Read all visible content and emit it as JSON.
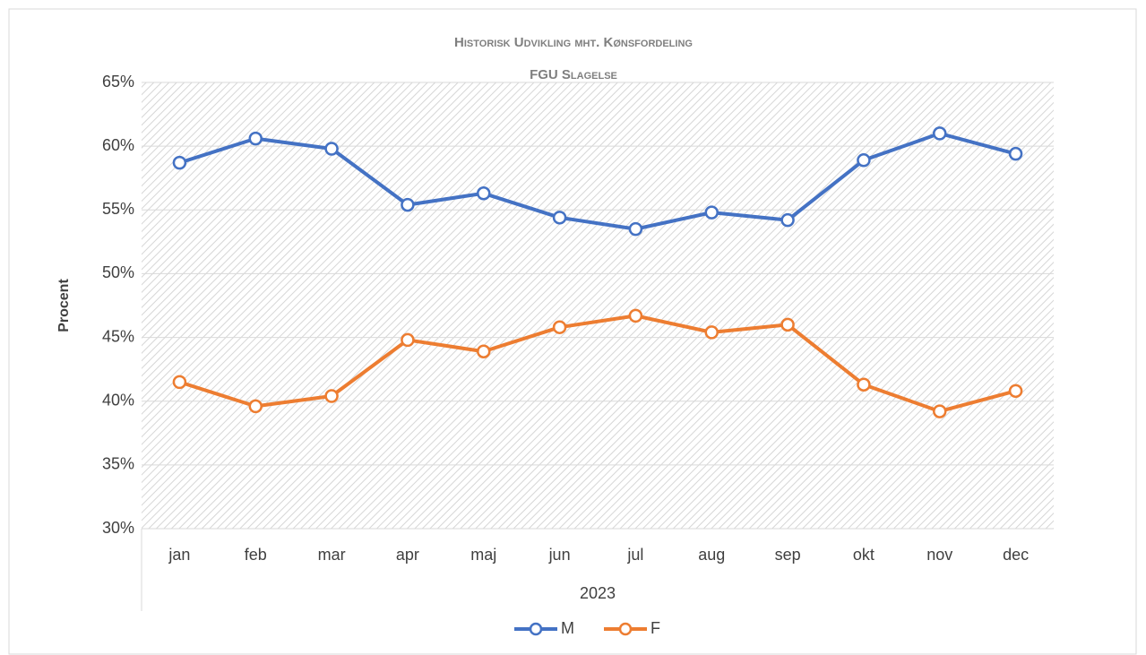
{
  "chart_data": {
    "type": "line",
    "title": "Historisk Udvikling mht. Kønsfordeling",
    "subtitle": "FGU Slagelse",
    "y_label": "Procent",
    "x_group_label": "2023",
    "categories": [
      "jan",
      "feb",
      "mar",
      "apr",
      "maj",
      "jun",
      "jul",
      "aug",
      "sep",
      "okt",
      "nov",
      "dec"
    ],
    "series": [
      {
        "name": "M",
        "color": "#4472c4",
        "values": [
          58.7,
          60.6,
          59.8,
          55.4,
          56.3,
          54.4,
          53.5,
          54.8,
          54.2,
          58.9,
          61.0,
          59.4
        ]
      },
      {
        "name": "F",
        "color": "#ed7d31",
        "values": [
          41.5,
          39.6,
          40.4,
          44.8,
          43.9,
          45.8,
          46.7,
          45.4,
          46.0,
          41.3,
          39.2,
          40.8
        ]
      }
    ],
    "ylim": [
      30,
      65
    ],
    "yticks": [
      {
        "value": 30,
        "label": "30%"
      },
      {
        "value": 35,
        "label": "35%"
      },
      {
        "value": 40,
        "label": "40%"
      },
      {
        "value": 45,
        "label": "45%"
      },
      {
        "value": 50,
        "label": "50%"
      },
      {
        "value": 55,
        "label": "55%"
      },
      {
        "value": 60,
        "label": "60%"
      },
      {
        "value": 65,
        "label": "65%"
      }
    ],
    "grid": true,
    "legend": "bottom"
  }
}
